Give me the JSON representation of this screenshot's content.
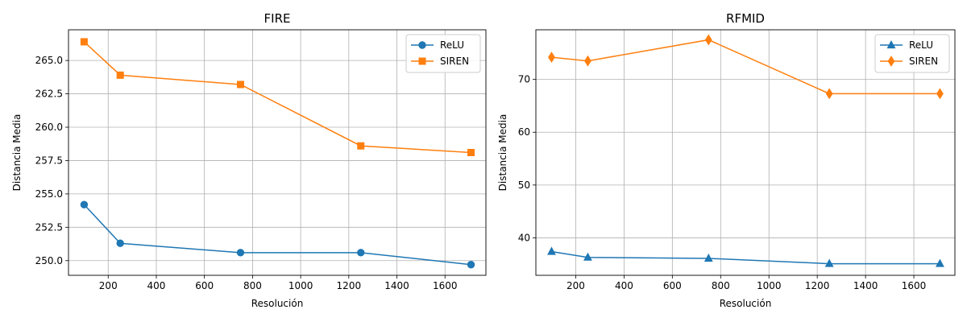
{
  "chart_data": [
    {
      "type": "line",
      "title": "FIRE",
      "xlabel": "Resolución",
      "ylabel": "Distancia Media",
      "xlim": [
        35,
        1770
      ],
      "ylim": [
        248.9,
        267.3
      ],
      "xticks": [
        200,
        400,
        600,
        800,
        1000,
        1200,
        1400,
        1600
      ],
      "yticks": [
        250.0,
        252.5,
        255.0,
        257.5,
        260.0,
        262.5,
        265.0
      ],
      "ytick_labels": [
        "250.0",
        "252.5",
        "255.0",
        "257.5",
        "260.0",
        "262.5",
        "265.0"
      ],
      "grid": true,
      "legend": "top-right",
      "series": [
        {
          "name": "ReLU",
          "color": "#1f77b4",
          "marker": "circle",
          "x": [
            100,
            250,
            750,
            1250,
            1708
          ],
          "y": [
            254.2,
            251.3,
            250.6,
            250.6,
            249.7
          ]
        },
        {
          "name": "SIREN",
          "color": "#ff7f0e",
          "marker": "square",
          "x": [
            100,
            250,
            750,
            1250,
            1708
          ],
          "y": [
            266.4,
            263.9,
            263.2,
            258.6,
            258.1
          ]
        }
      ]
    },
    {
      "type": "line",
      "title": "RFMID",
      "xlabel": "Resolución",
      "ylabel": "Distancia Media",
      "xlim": [
        35,
        1770
      ],
      "ylim": [
        32.9,
        79.4
      ],
      "xticks": [
        200,
        400,
        600,
        800,
        1000,
        1200,
        1400,
        1600
      ],
      "yticks": [
        40,
        50,
        60,
        70
      ],
      "ytick_labels": [
        "40",
        "50",
        "60",
        "70"
      ],
      "grid": true,
      "legend": "top-right",
      "series": [
        {
          "name": "ReLU",
          "color": "#1f77b4",
          "marker": "triangle",
          "x": [
            100,
            250,
            750,
            1250,
            1708
          ],
          "y": [
            37.4,
            36.3,
            36.1,
            35.1,
            35.1
          ]
        },
        {
          "name": "SIREN",
          "color": "#ff7f0e",
          "marker": "diamond",
          "x": [
            100,
            250,
            750,
            1250,
            1708
          ],
          "y": [
            74.2,
            73.5,
            77.5,
            67.3,
            67.3
          ]
        }
      ]
    }
  ]
}
